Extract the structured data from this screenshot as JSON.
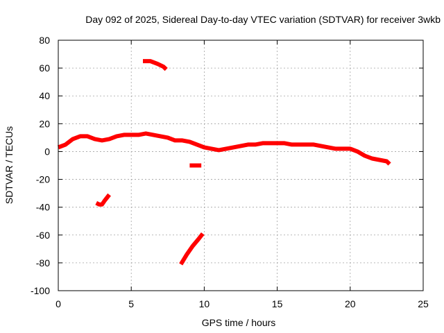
{
  "chart_data": {
    "type": "line",
    "title": "Day 092 of 2025, Sidereal Day-to-day VTEC variation (SDTVAR) for receiver 3wkb",
    "xlabel": "GPS time / hours",
    "ylabel": "SDTVAR / TECUs",
    "xlim": [
      0,
      25
    ],
    "ylim": [
      -100,
      80
    ],
    "x_ticks": [
      0,
      5,
      10,
      15,
      20,
      25
    ],
    "y_ticks": [
      -100,
      -80,
      -60,
      -40,
      -20,
      0,
      20,
      40,
      60,
      80
    ],
    "grid": true,
    "legend": "none",
    "color": "#ff0000",
    "series": [
      {
        "name": "main-trace",
        "x": [
          0,
          0.5,
          1.0,
          1.5,
          2.0,
          2.5,
          3.0,
          3.5,
          4.0,
          4.5,
          5.0,
          5.5,
          6.0,
          6.5,
          7.0,
          7.5,
          8.0,
          8.5,
          9.0,
          9.5,
          10.0,
          10.5,
          11.0,
          11.5,
          12.0,
          12.5,
          13.0,
          13.5,
          14.0,
          14.5,
          15.0,
          15.5,
          16.0,
          16.5,
          17.0,
          17.5,
          18.0,
          18.5,
          19.0,
          19.5,
          20.0,
          20.5,
          21.0,
          21.5,
          22.0,
          22.5,
          22.7
        ],
        "y": [
          3,
          5,
          9,
          11,
          11,
          9,
          8,
          9,
          11,
          12,
          12,
          12,
          13,
          12,
          11,
          10,
          8,
          8,
          7,
          5,
          3,
          2,
          1,
          2,
          3,
          4,
          5,
          5,
          6,
          6,
          6,
          6,
          5,
          5,
          5,
          5,
          4,
          3,
          2,
          2,
          2,
          0,
          -3,
          -5,
          -6,
          -7,
          -9
        ]
      },
      {
        "name": "segment-upper",
        "x": [
          5.8,
          6.3,
          6.8,
          7.2,
          7.4
        ],
        "y": [
          65,
          65,
          63,
          61,
          59
        ]
      },
      {
        "name": "segment-short-negative",
        "x": [
          9.0,
          9.3,
          9.6,
          9.8
        ],
        "y": [
          -10,
          -10,
          -10,
          -10
        ]
      },
      {
        "name": "segment-lower-left",
        "x": [
          2.6,
          2.8,
          3.0,
          3.2,
          3.5
        ],
        "y": [
          -37,
          -38,
          -38,
          -35,
          -31
        ]
      },
      {
        "name": "segment-steep",
        "x": [
          8.4,
          8.8,
          9.2,
          9.6,
          9.9
        ],
        "y": [
          -81,
          -74,
          -68,
          -63,
          -59
        ]
      }
    ]
  }
}
